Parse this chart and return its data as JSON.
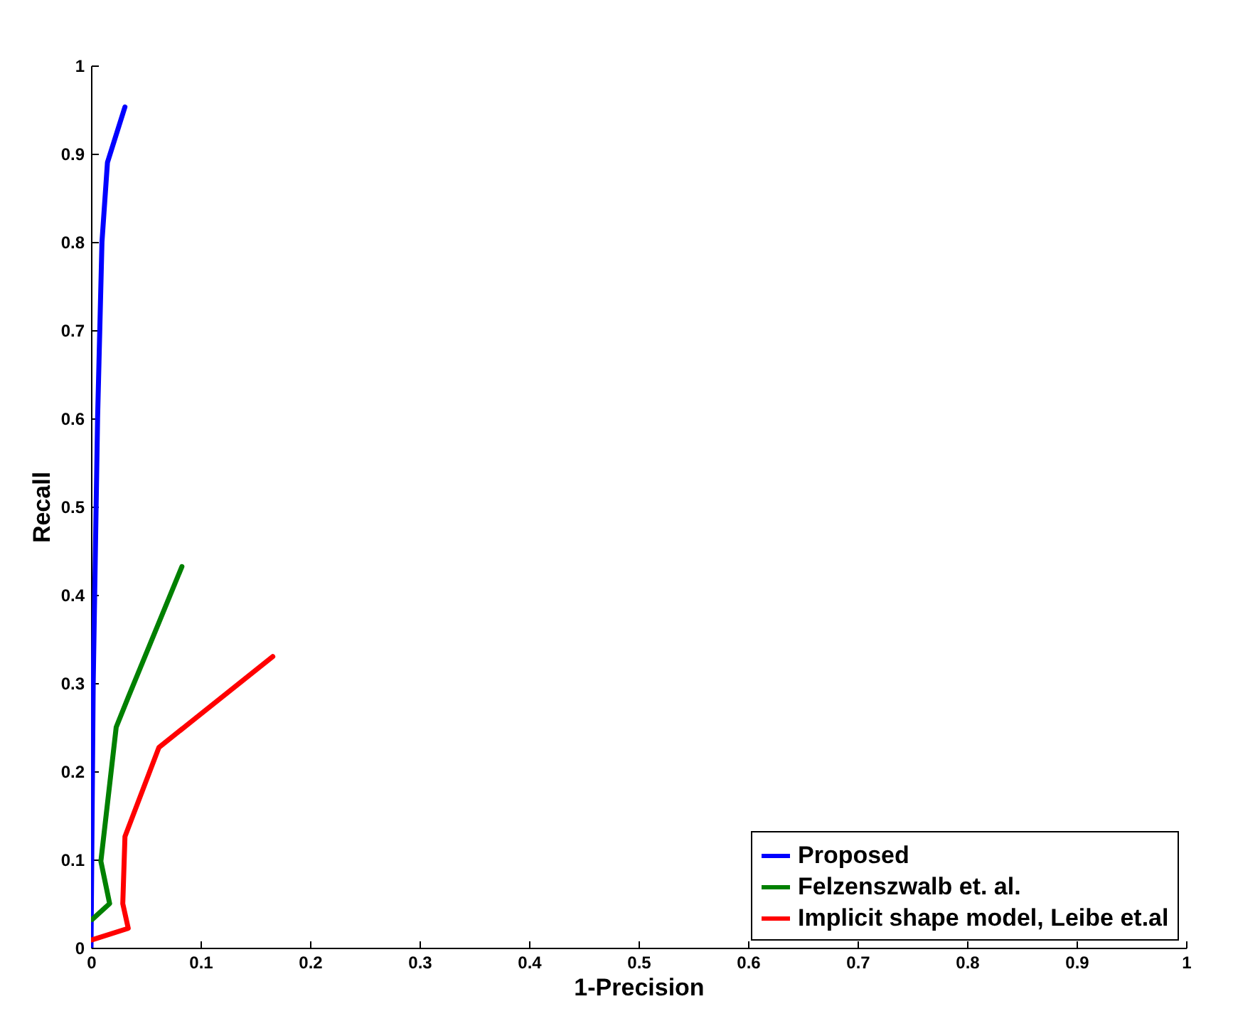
{
  "chart_data": {
    "type": "line",
    "xlabel": "1-Precision",
    "ylabel": "Recall",
    "xlim": [
      0,
      1
    ],
    "ylim": [
      0,
      1
    ],
    "xticks": [
      0,
      0.1,
      0.2,
      0.3,
      0.4,
      0.5,
      0.6,
      0.7,
      0.8,
      0.9,
      1
    ],
    "yticks": [
      0,
      0.1,
      0.2,
      0.3,
      0.4,
      0.5,
      0.6,
      0.7,
      0.8,
      0.9,
      1
    ],
    "grid": false,
    "legend": "bottom right",
    "line_style": "solid",
    "series": [
      {
        "name": "Proposed",
        "color": "#0000ff",
        "x": [
          0,
          0.002,
          0.006,
          0.01,
          0.015,
          0.031
        ],
        "values": [
          0,
          0.3,
          0.6,
          0.8,
          0.89,
          0.953
        ]
      },
      {
        "name": "Felzenszwalb et. al.",
        "color": "#008000",
        "x": [
          0.001,
          0.017,
          0.009,
          0.023,
          0.034,
          0.083
        ],
        "values": [
          0.032,
          0.05,
          0.098,
          0.25,
          0.284,
          0.432
        ]
      },
      {
        "name": "Implicit shape model, Leibe et.al",
        "color": "#ff0000",
        "x": [
          0.001,
          0.034,
          0.029,
          0.031,
          0.062,
          0.166
        ],
        "values": [
          0.009,
          0.022,
          0.05,
          0.126,
          0.227,
          0.33
        ]
      }
    ]
  }
}
